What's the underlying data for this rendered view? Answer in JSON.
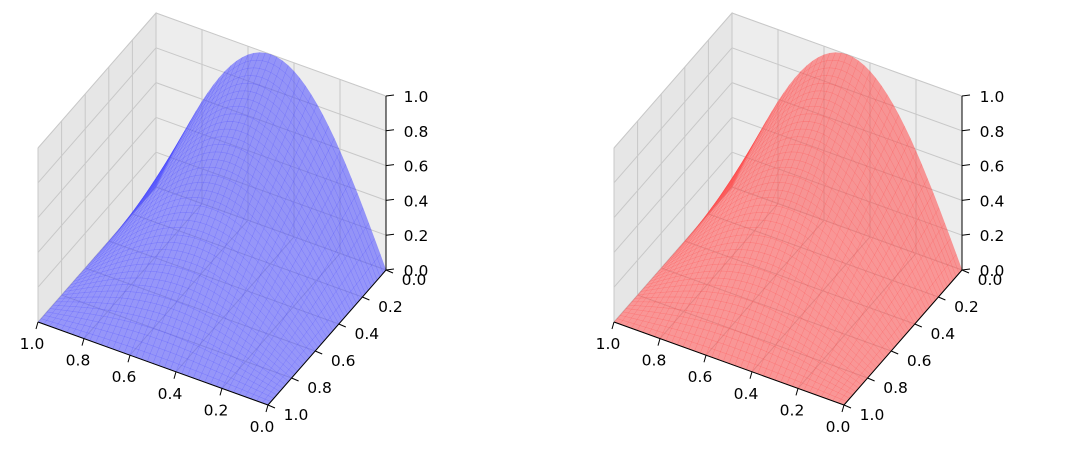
{
  "chart_data": [
    {
      "type": "surface",
      "function": "z = sin(pi * x) * (1 - y)",
      "x": [
        0.0,
        0.1,
        0.2,
        0.3,
        0.4,
        0.5,
        0.6,
        0.7,
        0.8,
        0.9,
        1.0
      ],
      "y": [
        0.0,
        0.1,
        0.2,
        0.3,
        0.4,
        0.5,
        0.6,
        0.7,
        0.8,
        0.9,
        1.0
      ],
      "z_along_x_at_y0": [
        0.0,
        0.309,
        0.588,
        0.809,
        0.951,
        1.0,
        0.951,
        0.809,
        0.588,
        0.309,
        0.0
      ],
      "xlim": [
        0,
        1
      ],
      "ylim": [
        0,
        1
      ],
      "zlim": [
        0,
        1
      ],
      "x_ticks": [
        "1.0",
        "0.8",
        "0.6",
        "0.4",
        "0.2",
        "0.0"
      ],
      "y_ticks": [
        "0.0",
        "0.2",
        "0.4",
        "0.6",
        "0.8",
        "1.0"
      ],
      "z_ticks": [
        "0.0",
        "0.2",
        "0.4",
        "0.6",
        "0.8",
        "1.0"
      ],
      "color": "#4a4aff",
      "grid": true
    },
    {
      "type": "surface",
      "function": "z = sin(pi * x) * (1 - y)",
      "x": [
        0.0,
        0.1,
        0.2,
        0.3,
        0.4,
        0.5,
        0.6,
        0.7,
        0.8,
        0.9,
        1.0
      ],
      "y": [
        0.0,
        0.1,
        0.2,
        0.3,
        0.4,
        0.5,
        0.6,
        0.7,
        0.8,
        0.9,
        1.0
      ],
      "z_along_x_at_y0": [
        0.0,
        0.309,
        0.588,
        0.809,
        0.951,
        1.0,
        0.951,
        0.809,
        0.588,
        0.309,
        0.0
      ],
      "xlim": [
        0,
        1
      ],
      "ylim": [
        0,
        1
      ],
      "zlim": [
        0,
        1
      ],
      "x_ticks": [
        "1.0",
        "0.8",
        "0.6",
        "0.4",
        "0.2",
        "0.0"
      ],
      "y_ticks": [
        "0.0",
        "0.2",
        "0.4",
        "0.6",
        "0.8",
        "1.0"
      ],
      "z_ticks": [
        "0.0",
        "0.2",
        "0.4",
        "0.6",
        "0.8",
        "1.0"
      ],
      "color": "#ff4a4a",
      "grid": true
    }
  ]
}
